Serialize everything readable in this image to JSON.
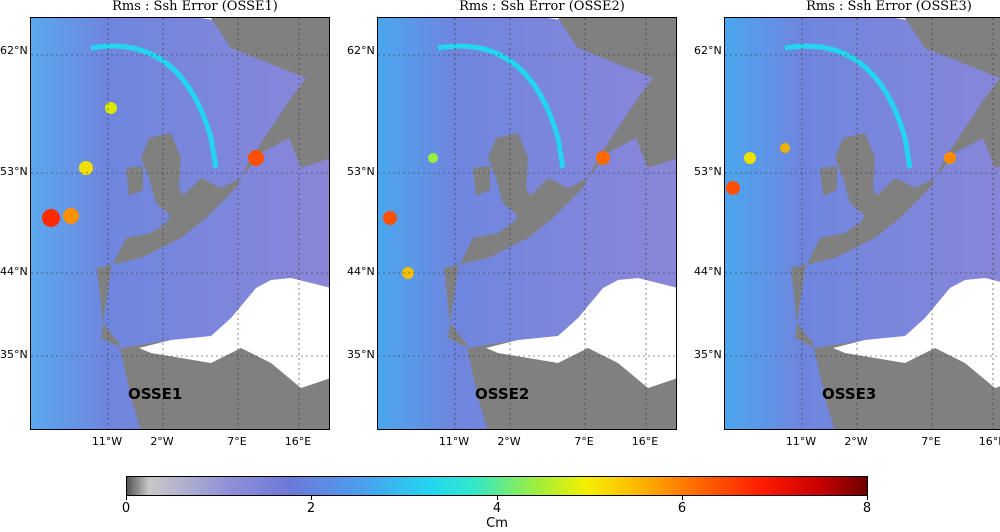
{
  "panels": [
    {
      "title": "Rms : Ssh Error (OSSE1)",
      "label": "OSSE1"
    },
    {
      "title": "Rms : Ssh Error (OSSE2)",
      "label": "OSSE2"
    },
    {
      "title": "Rms : Ssh Error (OSSE3)",
      "label": "OSSE3"
    }
  ],
  "lat_labels": [
    "62°N",
    "53°N",
    "44°N",
    "35°N"
  ],
  "lon_labels": [
    "11°W",
    "2°W",
    "7°E",
    "16°E"
  ],
  "colorbar": {
    "ticks": [
      "0",
      "2",
      "4",
      "6",
      "8"
    ],
    "unit": "Cm"
  },
  "colors": {
    "land": "#808080",
    "ocean_low": "#7b84e0",
    "ocean_mid": "#22d6f0",
    "ocean_high": "#ff1a00"
  }
}
